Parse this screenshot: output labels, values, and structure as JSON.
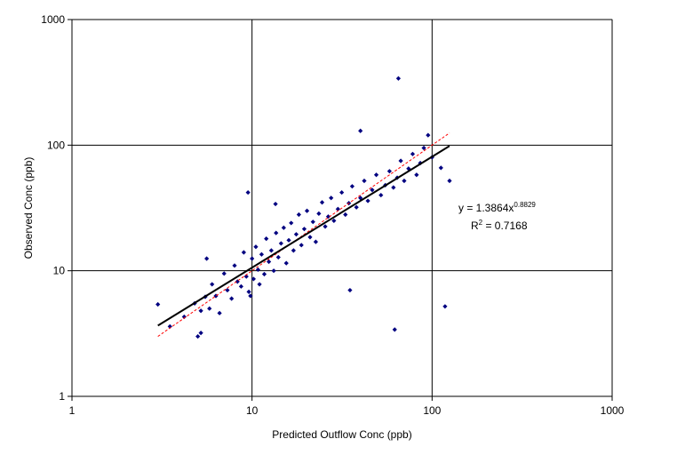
{
  "chart_data": {
    "type": "scatter",
    "title": "",
    "xlabel": "Predicted Outflow Conc (ppb)",
    "ylabel": "Observed Conc (ppb)",
    "xscale": "log",
    "yscale": "log",
    "xlim": [
      1,
      1000
    ],
    "ylim": [
      1,
      1000
    ],
    "xticks": [
      "1",
      "10",
      "100",
      "1000"
    ],
    "yticks": [
      "1",
      "10",
      "100",
      "1000"
    ],
    "grid": true,
    "legend": "none",
    "colors": {
      "points": "#000080",
      "trendline": "#000000",
      "one_to_one": "#ff0000",
      "grid": "#000000",
      "plot_border": "#808080"
    },
    "series": [
      {
        "type": "scatter",
        "marker": "diamond",
        "x": [
          3,
          3.5,
          4.2,
          4.8,
          5.0,
          5.2,
          5.5,
          5.8,
          6.0,
          6.3,
          6.6,
          7.0,
          7.3,
          7.7,
          8.0,
          8.3,
          8.7,
          9.0,
          9.3,
          9.6,
          10.0,
          10.2,
          10.5,
          10.8,
          11.0,
          11.3,
          11.7,
          12.0,
          12.4,
          12.8,
          13.2,
          13.6,
          14.0,
          14.5,
          15.0,
          15.5,
          16.0,
          16.5,
          17.0,
          17.6,
          18.2,
          18.8,
          19.5,
          20.2,
          21.0,
          21.8,
          22.6,
          23.5,
          24.5,
          25.5,
          26.5,
          27.5,
          28.5,
          30.0,
          31.5,
          33.0,
          34.5,
          36.0,
          38.0,
          40.0,
          42.0,
          44.0,
          46.5,
          49.0,
          52.0,
          55.0,
          58.0,
          61.0,
          64.0,
          67.0,
          70.0,
          74.0,
          78.0,
          82.0,
          86.0,
          90.0,
          95.0,
          100.0,
          112.0,
          125.0,
          5.2,
          5.6,
          9.5,
          9.8,
          13.5,
          65,
          35,
          40,
          62,
          118
        ],
        "y": [
          5.4,
          3.6,
          4.3,
          5.5,
          3.0,
          4.8,
          6.2,
          5.0,
          7.8,
          6.3,
          4.6,
          9.5,
          7.0,
          6.0,
          11.0,
          8.2,
          7.5,
          14.0,
          9.0,
          6.8,
          12.5,
          8.6,
          15.5,
          10.2,
          7.8,
          13.5,
          9.4,
          18.0,
          11.8,
          14.5,
          10.0,
          20.0,
          12.8,
          16.5,
          22.0,
          11.5,
          17.5,
          24.0,
          14.5,
          19.5,
          28.0,
          16.0,
          21.5,
          30.0,
          18.5,
          24.5,
          17.0,
          28.5,
          35.0,
          22.5,
          27.0,
          38.0,
          25.0,
          31.0,
          42.0,
          28.0,
          34.5,
          47.0,
          32.0,
          38.0,
          52.0,
          36.0,
          44.0,
          58.0,
          40.0,
          48.0,
          62.0,
          46.0,
          55.0,
          75.0,
          52.0,
          65.0,
          85.0,
          58.0,
          72.0,
          95.0,
          120.0,
          80.0,
          66.0,
          52.0,
          3.2,
          12.5,
          42.0,
          6.3,
          34.0,
          340,
          7.0,
          130,
          3.4,
          5.2
        ]
      }
    ],
    "trendline": {
      "type": "power",
      "a": 1.3864,
      "b": 0.8829,
      "x_range": [
        3,
        125
      ],
      "equation_prefix": "y = 1.3864x",
      "equation_exponent": "0.8829",
      "r2_prefix": "R",
      "r2_exponent": "2",
      "r2_suffix": " = 0.7168"
    },
    "reference_line": {
      "type": "one_to_one",
      "x_range": [
        3,
        125
      ]
    }
  }
}
